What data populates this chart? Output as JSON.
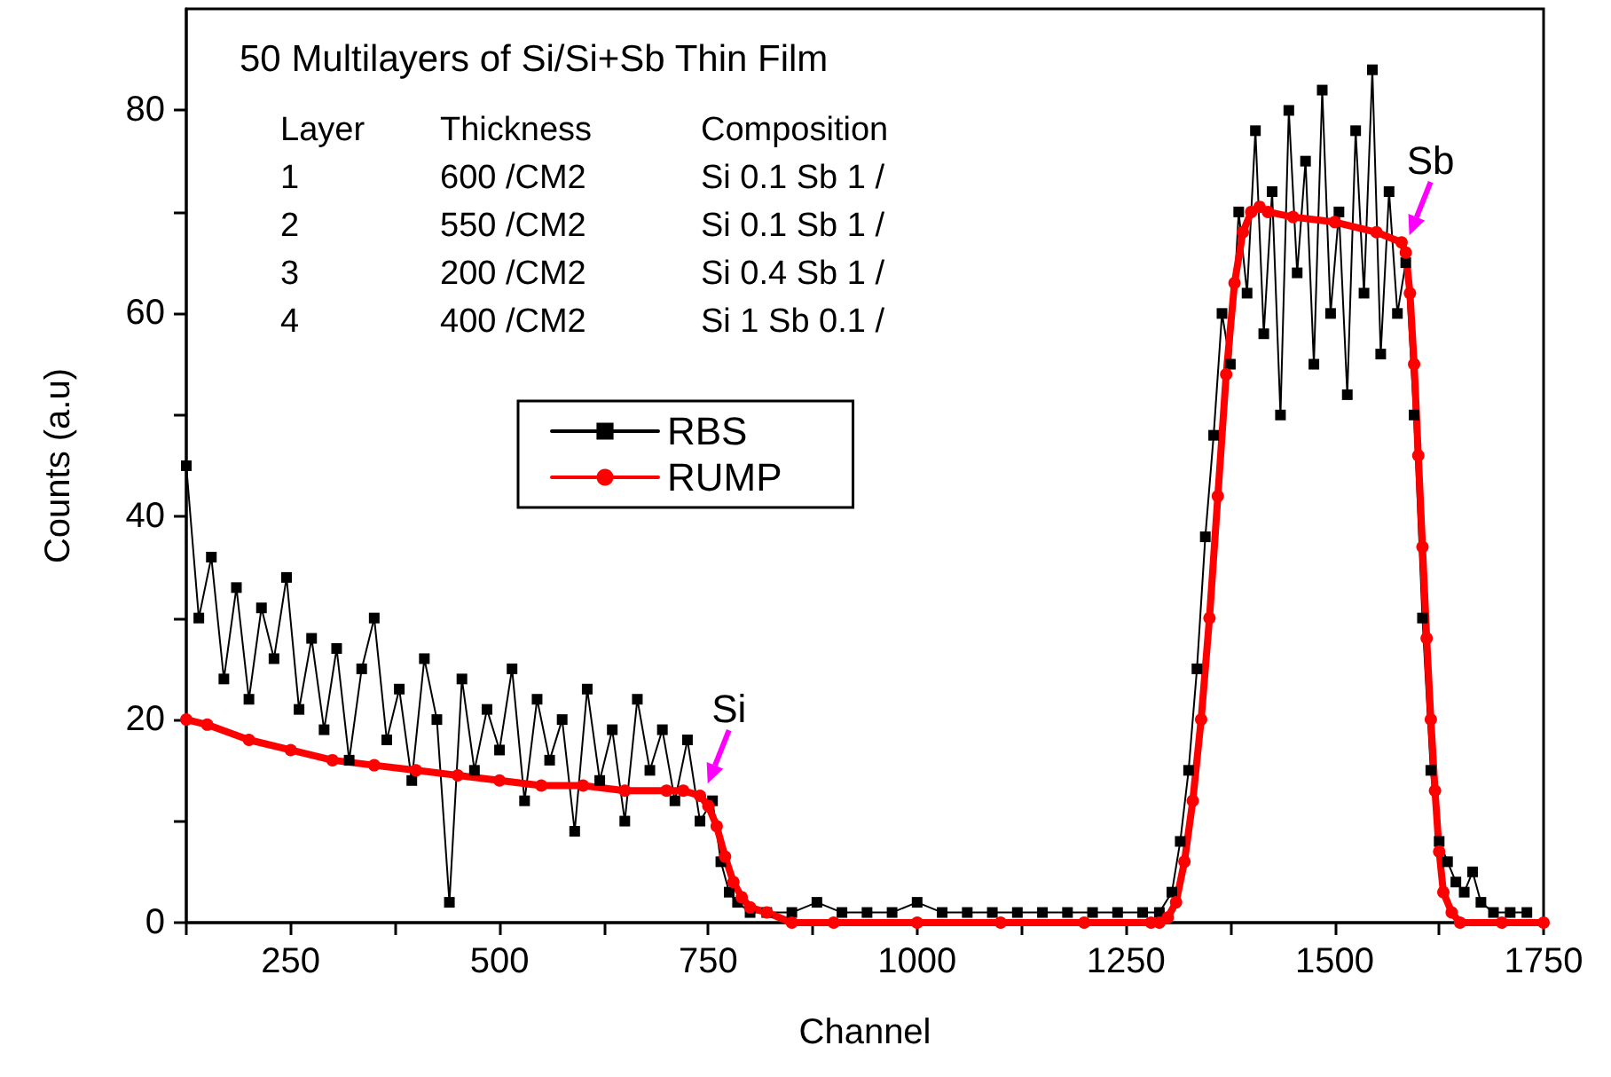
{
  "chart_data": {
    "type": "line",
    "title": "50 Multilayers of Si/Si+Sb Thin Film",
    "xlabel": "Channel",
    "ylabel": "Counts (a.u)",
    "annotations": [
      "Layer",
      "Thickness",
      "Composition",
      "1",
      "600 /CM2",
      "Si 0.1 Sb 1 /",
      "2",
      "550 /CM2",
      "Si 0.1 Sb 1 /",
      "3",
      "200 /CM2",
      "Si 0.4 Sb 1 /",
      "4",
      "400 /CM2",
      "Si 1 Sb 0.1 /",
      {
        "text": "Si",
        "x": 745,
        "y": 13
      },
      {
        "text": "Sb",
        "x": 1585,
        "y": 67
      }
    ],
    "xlim": [
      125,
      1750
    ],
    "xticks": [
      {
        "value": 125,
        "label": null
      },
      250,
      {
        "value": 375,
        "label": null
      },
      500,
      {
        "value": 625,
        "label": null
      },
      750,
      {
        "value": 875,
        "label": null
      },
      1000,
      {
        "value": 1125,
        "label": null
      },
      1250,
      {
        "value": 1375,
        "label": null
      },
      1500,
      {
        "value": 1625,
        "label": null
      },
      1750
    ],
    "ylim": [
      0,
      90
    ],
    "yticks": [
      0,
      {
        "value": 10,
        "label": null
      },
      20,
      {
        "value": 30,
        "label": null
      },
      40,
      {
        "value": 50,
        "label": null
      },
      60,
      {
        "value": 70,
        "label": null
      },
      80
    ],
    "grid": false,
    "legend": "center",
    "series": [
      {
        "name": "RBS",
        "color": "#000000",
        "marker": "square",
        "x": [
          125,
          140,
          155,
          170,
          185,
          200,
          215,
          230,
          245,
          260,
          275,
          290,
          305,
          320,
          335,
          350,
          365,
          380,
          395,
          410,
          425,
          440,
          455,
          470,
          485,
          500,
          515,
          530,
          545,
          560,
          575,
          590,
          605,
          620,
          635,
          650,
          665,
          680,
          695,
          710,
          725,
          740,
          755,
          765,
          775,
          785,
          800,
          820,
          850,
          880,
          910,
          940,
          970,
          1000,
          1030,
          1060,
          1090,
          1120,
          1150,
          1180,
          1210,
          1240,
          1270,
          1290,
          1305,
          1315,
          1325,
          1335,
          1345,
          1355,
          1365,
          1375,
          1385,
          1395,
          1405,
          1415,
          1425,
          1435,
          1445,
          1455,
          1465,
          1475,
          1485,
          1495,
          1505,
          1515,
          1525,
          1535,
          1545,
          1555,
          1565,
          1575,
          1585,
          1595,
          1605,
          1615,
          1625,
          1635,
          1645,
          1655,
          1665,
          1675,
          1690,
          1710,
          1730
        ],
        "values": [
          45,
          30,
          36,
          24,
          33,
          22,
          31,
          26,
          34,
          21,
          28,
          19,
          27,
          16,
          25,
          30,
          18,
          23,
          14,
          26,
          20,
          2,
          24,
          15,
          21,
          17,
          25,
          12,
          22,
          16,
          20,
          9,
          23,
          14,
          19,
          10,
          22,
          15,
          19,
          12,
          18,
          10,
          12,
          6,
          3,
          2,
          1,
          1,
          1,
          2,
          1,
          1,
          1,
          2,
          1,
          1,
          1,
          1,
          1,
          1,
          1,
          1,
          1,
          1,
          3,
          8,
          15,
          25,
          38,
          48,
          60,
          55,
          70,
          62,
          78,
          58,
          72,
          50,
          80,
          64,
          75,
          55,
          82,
          60,
          70,
          52,
          78,
          62,
          84,
          56,
          72,
          60,
          65,
          50,
          30,
          15,
          8,
          6,
          4,
          3,
          5,
          2,
          1,
          1,
          1
        ]
      },
      {
        "name": "RUMP",
        "color": "#ff0000",
        "marker": "circle",
        "x": [
          125,
          150,
          200,
          250,
          300,
          350,
          400,
          450,
          500,
          550,
          600,
          650,
          700,
          720,
          740,
          750,
          760,
          770,
          780,
          790,
          800,
          820,
          850,
          900,
          1000,
          1100,
          1200,
          1280,
          1290,
          1300,
          1310,
          1320,
          1330,
          1340,
          1350,
          1360,
          1370,
          1380,
          1390,
          1400,
          1410,
          1420,
          1450,
          1500,
          1550,
          1580,
          1585,
          1590,
          1595,
          1600,
          1605,
          1610,
          1615,
          1620,
          1625,
          1630,
          1640,
          1650,
          1700,
          1750
        ],
        "values": [
          20,
          19.5,
          18,
          17,
          16,
          15.5,
          15,
          14.5,
          14,
          13.5,
          13.5,
          13,
          13,
          13,
          12.5,
          11.5,
          9.5,
          6.5,
          4,
          2.5,
          1.5,
          1,
          0,
          0,
          0,
          0,
          0,
          0,
          0,
          0.5,
          2,
          6,
          12,
          20,
          30,
          42,
          54,
          63,
          68,
          70,
          70.5,
          70,
          69.5,
          69,
          68,
          67,
          66,
          62,
          55,
          46,
          37,
          28,
          20,
          13,
          7,
          3,
          1,
          0,
          0,
          0
        ]
      }
    ]
  }
}
